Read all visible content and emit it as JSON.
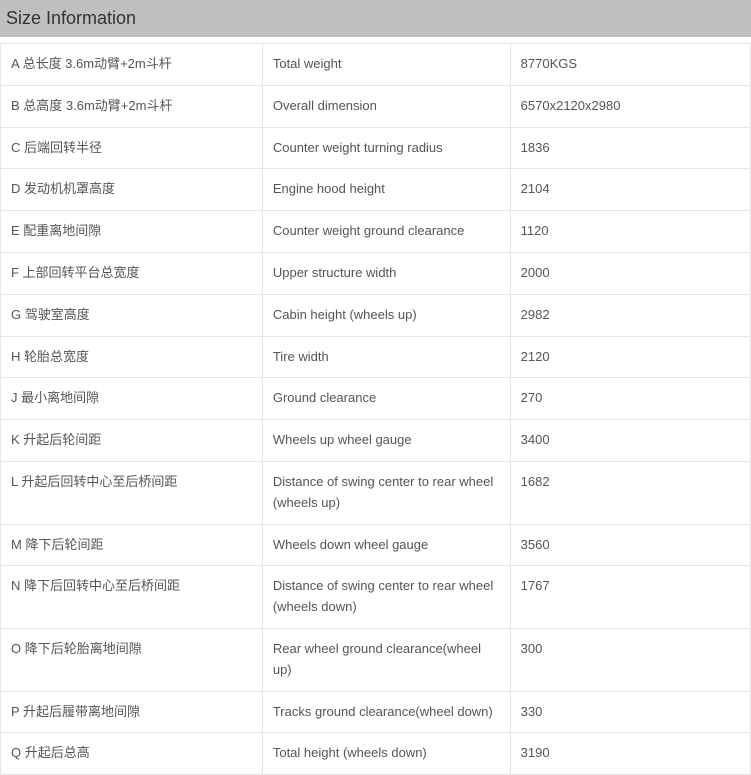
{
  "header": {
    "title": "Size Information"
  },
  "table": {
    "rows": [
      {
        "col1": "A 总长度 3.6m动臂+2m斗杆",
        "col2": "Total weight",
        "col3": "8770KGS"
      },
      {
        "col1": "B 总高度 3.6m动臂+2m斗杆",
        "col2": "Overall dimension",
        "col3": "6570x2120x2980"
      },
      {
        "col1": "C 后端回转半径",
        "col2": "Counter weight turning radius",
        "col3": "1836"
      },
      {
        "col1": "D 发动机机罩高度",
        "col2": "Engine hood height",
        "col3": "2104"
      },
      {
        "col1": "E 配重离地间隙",
        "col2": "Counter weight ground clearance",
        "col3": "1120"
      },
      {
        "col1": "F 上部回转平台总宽度",
        "col2": "Upper structure width",
        "col3": "2000"
      },
      {
        "col1": "G 驾驶室高度",
        "col2": "Cabin height (wheels up)",
        "col3": "2982"
      },
      {
        "col1": "H 轮胎总宽度",
        "col2": "Tire width",
        "col3": "2120"
      },
      {
        "col1": "J 最小离地间隙",
        "col2": "Ground clearance",
        "col3": "270"
      },
      {
        "col1": "K 升起后轮间距",
        "col2": "Wheels up wheel gauge",
        "col3": "3400"
      },
      {
        "col1": "L 升起后回转中心至后桥间距",
        "col2": "Distance of swing center to rear wheel (wheels up)",
        "col3": "1682"
      },
      {
        "col1": "M 降下后轮间距",
        "col2": "Wheels down wheel gauge",
        "col3": "3560"
      },
      {
        "col1": "N 降下后回转中心至后桥间距",
        "col2": "Distance of swing center to rear wheel (wheels down)",
        "col3": "1767"
      },
      {
        "col1": "O 降下后轮胎离地间隙",
        "col2": "Rear wheel ground clearance(wheel up)",
        "col3": "300"
      },
      {
        "col1": "P 升起后履带离地间隙",
        "col2": "Tracks ground clearance(wheel down)",
        "col3": "330"
      },
      {
        "col1": "Q 升起后总高",
        "col2": "Total height (wheels down)",
        "col3": "3190"
      }
    ]
  },
  "style": {
    "header_bg": "#bfbfbf",
    "header_color": "#333333",
    "header_fontsize": 18,
    "cell_border_color": "#e6e6e6",
    "cell_text_color": "#555555",
    "cell_fontsize": 13,
    "column_widths": [
      "35%",
      "33%",
      "32%"
    ]
  }
}
